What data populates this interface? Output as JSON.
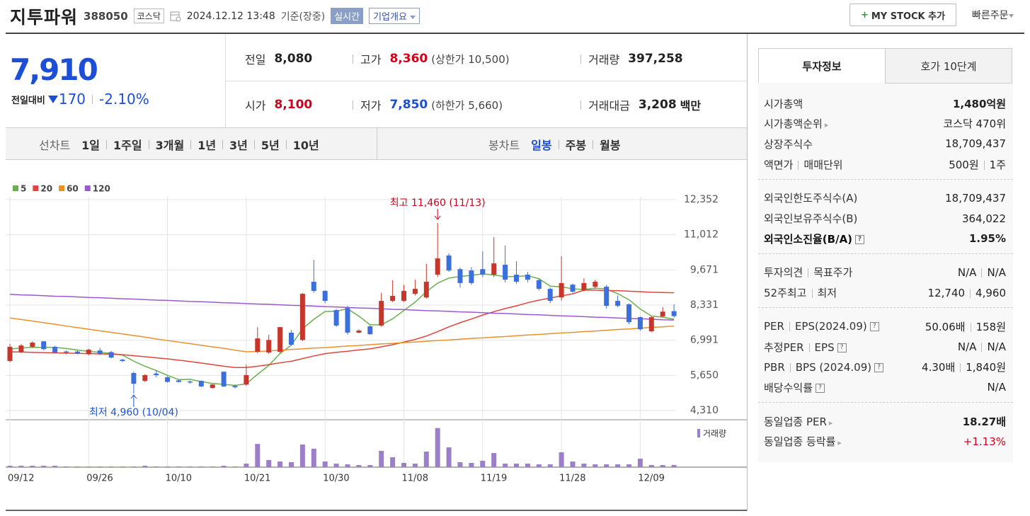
{
  "header": {
    "name": "지투파워",
    "code": "388050",
    "market": "코스닥",
    "datetime": "2024.12.12 13:48",
    "basis": "기준(장중)",
    "realtime": "실시간",
    "overview": "기업개요",
    "my_stock": "MY STOCK 추가",
    "quick_order": "빠른주문"
  },
  "price": {
    "current": "7,910",
    "change_label": "전일대비",
    "change": "170",
    "change_rate": "-2.10%"
  },
  "summary": [
    [
      {
        "label": "전일",
        "value": "8,080"
      },
      {
        "label": "고가",
        "value": "8,360",
        "color": "#d0021b",
        "extra": "(상한가 10,500)"
      },
      {
        "label": "거래량",
        "value": "397,258"
      }
    ],
    [
      {
        "label": "시가",
        "value": "8,100",
        "color": "#d0021b"
      },
      {
        "label": "저가",
        "value": "7,850",
        "color": "#1f4fd1",
        "extra": "(하한가 5,660)"
      },
      {
        "label": "거래대금",
        "value": "3,208",
        "unit": "백만"
      }
    ]
  ],
  "chart_tabs": {
    "line_label": "선차트",
    "line_periods": [
      "1일",
      "1주일",
      "3개월",
      "1년",
      "3년",
      "5년",
      "10년"
    ],
    "candle_label": "봉차트",
    "candle_periods": [
      "일봉",
      "주봉",
      "월봉"
    ]
  },
  "chart_data": {
    "type": "candlestick",
    "categories": [
      "09/12",
      null,
      null,
      null,
      null,
      null,
      null,
      "09/26",
      null,
      null,
      null,
      null,
      null,
      null,
      "10/10",
      null,
      null,
      null,
      null,
      null,
      null,
      "10/21",
      null,
      null,
      null,
      null,
      null,
      null,
      "10/30",
      null,
      null,
      null,
      null,
      null,
      null,
      "11/08",
      null,
      null,
      null,
      null,
      null,
      null,
      "11/19",
      null,
      null,
      null,
      null,
      null,
      null,
      "11/28",
      null,
      null,
      null,
      null,
      null,
      null,
      "12/09",
      null,
      null,
      null
    ],
    "open": [
      6200,
      6550,
      6740,
      6950,
      6740,
      6560,
      6560,
      6460,
      6600,
      6540,
      6250,
      5740,
      5440,
      5720,
      5580,
      5460,
      5420,
      5440,
      5170,
      5790,
      5250,
      5300,
      6550,
      6520,
      6550,
      7280,
      7000,
      9220,
      8870,
      8140,
      8220,
      7280,
      7520,
      7550,
      8490,
      8490,
      8760,
      8620,
      9490,
      10220,
      9700,
      9650,
      9700,
      9490,
      9870,
      9490,
      9490,
      9280,
      8950,
      8620,
      9110,
      8900,
      9030,
      9030,
      8490,
      8360,
      7870,
      7330,
      7900,
      8100
    ],
    "high": [
      6850,
      6850,
      6950,
      6960,
      6780,
      6600,
      6600,
      6660,
      6700,
      6580,
      6280,
      5800,
      5700,
      5850,
      5620,
      5500,
      5450,
      5460,
      5320,
      5800,
      5300,
      6060,
      7490,
      7200,
      7500,
      7380,
      8800,
      10060,
      8900,
      8180,
      8300,
      7400,
      7550,
      8800,
      9280,
      9100,
      9300,
      9900,
      11460,
      10300,
      9750,
      9780,
      10380,
      10920,
      10600,
      10000,
      9600,
      9350,
      9000,
      10190,
      9150,
      9350,
      9300,
      9100,
      8700,
      8400,
      7900,
      7900,
      8250,
      8360
    ],
    "low": [
      6150,
      6500,
      6700,
      6600,
      6480,
      6450,
      6450,
      6420,
      6420,
      6300,
      6150,
      4960,
      5400,
      5580,
      5380,
      5380,
      5330,
      5200,
      5150,
      5200,
      5150,
      5250,
      6500,
      6460,
      6500,
      6780,
      6950,
      8800,
      8400,
      7500,
      7200,
      7250,
      7200,
      7500,
      8450,
      8450,
      8700,
      8580,
      9400,
      9600,
      9000,
      9100,
      9400,
      9400,
      9200,
      9150,
      9200,
      8880,
      8400,
      8500,
      8800,
      8850,
      8950,
      8200,
      8250,
      7600,
      7350,
      7300,
      7870,
      7850
    ],
    "close": [
      6740,
      6790,
      6900,
      6650,
      6520,
      6520,
      6500,
      6630,
      6470,
      6330,
      6200,
      5330,
      5660,
      5660,
      5400,
      5400,
      5380,
      5230,
      5300,
      5230,
      5200,
      5660,
      7060,
      7000,
      7490,
      6820,
      8760,
      8870,
      8490,
      7550,
      7280,
      7360,
      7220,
      8490,
      8680,
      8870,
      8950,
      9220,
      10110,
      9650,
      9170,
      9170,
      9490,
      9920,
      9300,
      9220,
      9300,
      8950,
      8490,
      9170,
      8840,
      9170,
      9220,
      8300,
      8300,
      7680,
      7410,
      7870,
      8080,
      7910
    ],
    "up_color": "#c8362b",
    "down_color": "#3a6fdc",
    "series": [
      {
        "name": "5",
        "color": "#6ab04c",
        "values": [
          6650,
          6700,
          6720,
          6720,
          6720,
          6676,
          6618,
          6564,
          6528,
          6490,
          6426,
          6192,
          5998,
          5836,
          5650,
          5490,
          5500,
          5414,
          5342,
          5308,
          5268,
          5324,
          5690,
          6030,
          6482,
          6806,
          7426,
          7788,
          8086,
          8098,
          8190,
          7910,
          7580,
          7580,
          7806,
          8124,
          8442,
          8842,
          9166,
          9360,
          9420,
          9464,
          9518,
          9480,
          9410,
          9420,
          9446,
          9338,
          9052,
          9026,
          8950,
          8924,
          8978,
          8940,
          8766,
          8534,
          8182,
          7912,
          7868,
          7790
        ]
      },
      {
        "name": "20",
        "color": "#e0453a",
        "values": [
          6550,
          6540,
          6530,
          6520,
          6510,
          6500,
          6490,
          6480,
          6470,
          6460,
          6440,
          6400,
          6360,
          6320,
          6280,
          6230,
          6180,
          6120,
          6060,
          6000,
          5950,
          5950,
          6000,
          6060,
          6130,
          6190,
          6290,
          6390,
          6480,
          6530,
          6570,
          6620,
          6660,
          6740,
          6820,
          6920,
          7020,
          7150,
          7320,
          7500,
          7660,
          7800,
          7950,
          8080,
          8200,
          8300,
          8420,
          8520,
          8600,
          8680,
          8760,
          8900,
          8900,
          8880,
          8880,
          8860,
          8840,
          8820,
          8810,
          8800
        ]
      },
      {
        "name": "60",
        "color": "#e8912c",
        "values": [
          7840,
          7780,
          7720,
          7660,
          7600,
          7530,
          7470,
          7410,
          7350,
          7290,
          7230,
          7170,
          7110,
          7040,
          6980,
          6920,
          6860,
          6800,
          6740,
          6680,
          6610,
          6550,
          6560,
          6580,
          6610,
          6640,
          6660,
          6690,
          6710,
          6740,
          6770,
          6790,
          6820,
          6850,
          6870,
          6900,
          6920,
          6950,
          6980,
          7000,
          7030,
          7060,
          7080,
          7110,
          7130,
          7160,
          7190,
          7210,
          7240,
          7270,
          7290,
          7320,
          7340,
          7370,
          7400,
          7420,
          7450,
          7480,
          7500,
          7530
        ]
      },
      {
        "name": "120",
        "color": "#9b59d0",
        "values": [
          8740,
          8720,
          8710,
          8690,
          8670,
          8660,
          8640,
          8620,
          8610,
          8590,
          8570,
          8560,
          8540,
          8520,
          8510,
          8490,
          8470,
          8460,
          8440,
          8420,
          8410,
          8390,
          8370,
          8360,
          8340,
          8320,
          8310,
          8290,
          8270,
          8260,
          8240,
          8220,
          8210,
          8190,
          8170,
          8160,
          8140,
          8120,
          8110,
          8090,
          8070,
          8060,
          8040,
          8020,
          8010,
          7990,
          7970,
          7960,
          7940,
          7920,
          7910,
          7890,
          7870,
          7860,
          7840,
          7820,
          7810,
          7790,
          7770,
          7760
        ]
      }
    ],
    "ylim": [
      4310,
      12352
    ],
    "yticks": [
      {
        "value": 12352,
        "label": "12,352"
      },
      {
        "value": 11012,
        "label": "11,012"
      },
      {
        "value": 9671,
        "label": "9,671"
      },
      {
        "value": 8331,
        "label": "8,331"
      },
      {
        "value": 6991,
        "label": "6,991"
      },
      {
        "value": 5650,
        "label": "5,650"
      },
      {
        "value": 4310,
        "label": "4,310"
      }
    ],
    "grid": true,
    "annotations": {
      "high": "최고 11,460 (11/13)",
      "low": "최저 4,960 (10/04)"
    },
    "volume": {
      "name": "거래량",
      "color": "#9b7fc9",
      "ylim": [
        0,
        7500000
      ],
      "values": [
        250000,
        250000,
        250000,
        250000,
        250000,
        125000,
        125000,
        125000,
        125000,
        125000,
        125000,
        125000,
        250000,
        125000,
        125000,
        125000,
        125000,
        125000,
        125000,
        250000,
        125000,
        625000,
        4100000,
        1250000,
        1000000,
        875000,
        4000000,
        3250000,
        1000000,
        625000,
        500000,
        375000,
        375000,
        2875000,
        1750000,
        750000,
        625000,
        2750000,
        6900000,
        3500000,
        875000,
        750000,
        1125000,
        2500000,
        625000,
        625000,
        625000,
        500000,
        500000,
        2625000,
        1000000,
        625000,
        500000,
        500000,
        500000,
        500000,
        1500000,
        375000,
        375000,
        397258
      ]
    }
  },
  "sidebar": {
    "tabs": [
      "투자정보",
      "호가 10단계"
    ],
    "groups": [
      [
        {
          "label": "시가총액",
          "value": "1,480억원",
          "bold_value": true
        },
        {
          "label": "시가총액순위",
          "value": "코스닥 470위",
          "link": true
        },
        {
          "label": "상장주식수",
          "value": "18,709,437"
        },
        {
          "label": [
            "액면가",
            "매매단위"
          ],
          "value": [
            "500원",
            "1주"
          ]
        }
      ],
      [
        {
          "label": "외국인한도주식수(A)",
          "value": "18,709,437"
        },
        {
          "label": "외국인보유주식수(B)",
          "value": "364,022"
        },
        {
          "label": "외국인소진율(B/A)",
          "value": "1.95%",
          "bold_label": true,
          "bold_value": true,
          "help": true
        }
      ],
      [
        {
          "label": [
            "투자의견",
            "목표주가"
          ],
          "value": [
            "N/A",
            "N/A"
          ]
        },
        {
          "label": [
            "52주최고",
            "최저"
          ],
          "value": [
            "12,740",
            "4,960"
          ]
        }
      ],
      [
        {
          "label": [
            "PER",
            "EPS(2024.09)"
          ],
          "value": [
            "50.06배",
            "158원"
          ],
          "help": true
        },
        {
          "label": [
            "추정PER",
            "EPS"
          ],
          "value": [
            "N/A",
            "N/A"
          ],
          "help": true
        },
        {
          "label": [
            "PBR",
            "BPS (2024.09)"
          ],
          "value": [
            "4.30배",
            "1,840원"
          ],
          "help": true
        },
        {
          "label": "배당수익률",
          "value": "N/A",
          "help": true
        }
      ],
      [
        {
          "label": "동일업종 PER",
          "value": "18.27배",
          "bold_value": true,
          "link": true
        },
        {
          "label": "동일업종 등락률",
          "value": "+1.13%",
          "color": "#d0021b",
          "link": true
        }
      ]
    ]
  }
}
